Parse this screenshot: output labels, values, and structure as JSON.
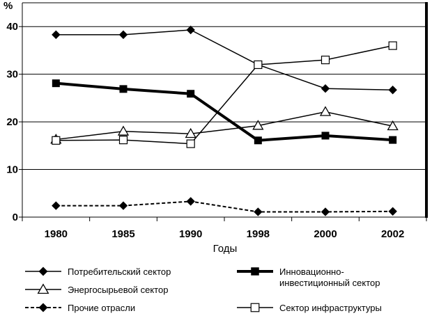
{
  "chart_data": {
    "type": "line",
    "x": [
      "1980",
      "1985",
      "1990",
      "1998",
      "2000",
      "2002"
    ],
    "xlabel": "Годы",
    "ylabel": "%",
    "ylim": [
      0,
      45
    ],
    "yticks": [
      0,
      10,
      20,
      30,
      40
    ],
    "grid": "horizontal",
    "legend": "bottom",
    "series": [
      {
        "name": "Потребительский сектор",
        "values": [
          38.3,
          38.3,
          39.3,
          32.0,
          27.0,
          26.7
        ],
        "marker": "diamond-filled",
        "line": "solid"
      },
      {
        "name": "Энергосырьевой сектор",
        "values": [
          16.3,
          18.0,
          17.5,
          19.2,
          22.1,
          19.1
        ],
        "marker": "triangle-open",
        "line": "solid"
      },
      {
        "name": "Прочие отрасли",
        "values": [
          2.4,
          2.4,
          3.3,
          1.1,
          1.1,
          1.2
        ],
        "marker": "diamond-filled",
        "line": "dashed"
      },
      {
        "name": "Инновационно-инвестиционный сектор",
        "name_lines": [
          "Инновационно-",
          "инвестиционный сектор"
        ],
        "values": [
          28.1,
          26.9,
          25.9,
          16.1,
          17.1,
          16.2
        ],
        "marker": "square-filled",
        "line": "thick"
      },
      {
        "name": "Сектор инфраструктуры",
        "values": [
          16.1,
          16.2,
          15.4,
          32.0,
          33.0,
          36.0
        ],
        "marker": "square-open",
        "line": "solid"
      }
    ]
  }
}
